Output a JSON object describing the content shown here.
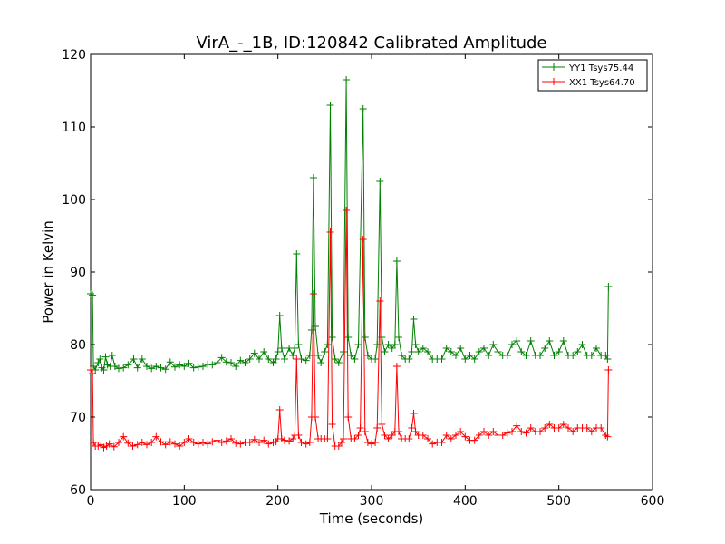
{
  "chart_data": {
    "type": "line",
    "title": "VirA_-_1B, ID:120842 Calibrated Amplitude",
    "xlabel": "Time (seconds)",
    "ylabel": "Power in Kelvin",
    "xlim": [
      0,
      600
    ],
    "ylim": [
      60,
      120
    ],
    "xticks": [
      0,
      100,
      200,
      300,
      400,
      500,
      600
    ],
    "yticks": [
      60,
      70,
      80,
      90,
      100,
      110,
      120
    ],
    "xtick_labels": [
      "0",
      "100",
      "200",
      "300",
      "400",
      "500",
      "600"
    ],
    "ytick_labels": [
      "60",
      "70",
      "80",
      "90",
      "100",
      "110",
      "120"
    ],
    "grid": false,
    "legend_position": "top-right",
    "series": [
      {
        "name": "YY1 Tsys75.44",
        "color": "#008000",
        "marker": "+",
        "points": [
          [
            0,
            87.0
          ],
          [
            2,
            86.8
          ],
          [
            3,
            77.0
          ],
          [
            5,
            76.5
          ],
          [
            8,
            77.5
          ],
          [
            10,
            78.0
          ],
          [
            12,
            76.8
          ],
          [
            14,
            76.5
          ],
          [
            16,
            78.3
          ],
          [
            18,
            77.2
          ],
          [
            21,
            77.0
          ],
          [
            23,
            78.5
          ],
          [
            26,
            77.0
          ],
          [
            30,
            76.7
          ],
          [
            35,
            76.8
          ],
          [
            40,
            77.2
          ],
          [
            46,
            78.0
          ],
          [
            50,
            76.8
          ],
          [
            55,
            78.0
          ],
          [
            60,
            77.0
          ],
          [
            65,
            76.7
          ],
          [
            70,
            77.0
          ],
          [
            75,
            76.8
          ],
          [
            80,
            76.6
          ],
          [
            85,
            77.6
          ],
          [
            90,
            76.9
          ],
          [
            95,
            77.2
          ],
          [
            100,
            77.0
          ],
          [
            105,
            77.4
          ],
          [
            110,
            76.8
          ],
          [
            115,
            76.9
          ],
          [
            120,
            77.0
          ],
          [
            125,
            77.3
          ],
          [
            130,
            77.2
          ],
          [
            135,
            77.5
          ],
          [
            140,
            78.2
          ],
          [
            145,
            77.6
          ],
          [
            150,
            77.5
          ],
          [
            155,
            77.0
          ],
          [
            160,
            77.8
          ],
          [
            165,
            77.5
          ],
          [
            170,
            78.0
          ],
          [
            175,
            78.8
          ],
          [
            180,
            78.0
          ],
          [
            185,
            79.0
          ],
          [
            190,
            78.0
          ],
          [
            195,
            77.5
          ],
          [
            198,
            78.0
          ],
          [
            200,
            79.0
          ],
          [
            202,
            84.0
          ],
          [
            204,
            79.5
          ],
          [
            207,
            78.0
          ],
          [
            212,
            79.5
          ],
          [
            216,
            78.5
          ],
          [
            218,
            79.5
          ],
          [
            220,
            92.5
          ],
          [
            222,
            80.0
          ],
          [
            225,
            78.0
          ],
          [
            230,
            77.8
          ],
          [
            234,
            78.5
          ],
          [
            236,
            82.0
          ],
          [
            238,
            103.0
          ],
          [
            240,
            82.5
          ],
          [
            243,
            78.5
          ],
          [
            246,
            77.5
          ],
          [
            250,
            79.0
          ],
          [
            253,
            80.0
          ],
          [
            256,
            113.0
          ],
          [
            258,
            81.0
          ],
          [
            261,
            78.0
          ],
          [
            265,
            77.5
          ],
          [
            270,
            79.0
          ],
          [
            273,
            116.5
          ],
          [
            275,
            81.0
          ],
          [
            278,
            78.5
          ],
          [
            282,
            78.0
          ],
          [
            286,
            80.0
          ],
          [
            291,
            112.5
          ],
          [
            293,
            81.0
          ],
          [
            296,
            78.5
          ],
          [
            300,
            78.0
          ],
          [
            304,
            78.0
          ],
          [
            306,
            80.0
          ],
          [
            309,
            102.5
          ],
          [
            311,
            81.0
          ],
          [
            314,
            79.0
          ],
          [
            318,
            80.0
          ],
          [
            322,
            79.5
          ],
          [
            325,
            80.0
          ],
          [
            327,
            91.5
          ],
          [
            329,
            81.0
          ],
          [
            332,
            78.5
          ],
          [
            336,
            78.0
          ],
          [
            340,
            78.0
          ],
          [
            343,
            79.0
          ],
          [
            345,
            83.5
          ],
          [
            347,
            80.0
          ],
          [
            350,
            79.0
          ],
          [
            355,
            79.5
          ],
          [
            360,
            79.0
          ],
          [
            365,
            78.0
          ],
          [
            370,
            78.0
          ],
          [
            375,
            78.0
          ],
          [
            380,
            79.5
          ],
          [
            385,
            79.0
          ],
          [
            390,
            78.5
          ],
          [
            395,
            79.5
          ],
          [
            400,
            78.0
          ],
          [
            405,
            78.5
          ],
          [
            410,
            78.0
          ],
          [
            415,
            79.0
          ],
          [
            420,
            79.5
          ],
          [
            425,
            78.5
          ],
          [
            430,
            80.0
          ],
          [
            435,
            79.0
          ],
          [
            440,
            78.5
          ],
          [
            445,
            78.5
          ],
          [
            450,
            80.0
          ],
          [
            455,
            80.5
          ],
          [
            460,
            79.0
          ],
          [
            465,
            78.5
          ],
          [
            470,
            80.5
          ],
          [
            475,
            78.5
          ],
          [
            480,
            78.5
          ],
          [
            485,
            79.5
          ],
          [
            490,
            80.5
          ],
          [
            495,
            78.5
          ],
          [
            500,
            79.0
          ],
          [
            505,
            80.5
          ],
          [
            510,
            78.5
          ],
          [
            515,
            78.5
          ],
          [
            520,
            79.0
          ],
          [
            525,
            80.0
          ],
          [
            530,
            78.5
          ],
          [
            535,
            78.5
          ],
          [
            540,
            79.5
          ],
          [
            545,
            78.5
          ],
          [
            550,
            78.5
          ],
          [
            552,
            78.0
          ],
          [
            553,
            88.0
          ]
        ]
      },
      {
        "name": "XX1 Tsys64.70",
        "color": "#ff0000",
        "marker": "+",
        "points": [
          [
            0,
            76.5
          ],
          [
            2,
            76.0
          ],
          [
            3,
            66.5
          ],
          [
            5,
            66.0
          ],
          [
            8,
            66.0
          ],
          [
            11,
            66.2
          ],
          [
            14,
            65.8
          ],
          [
            17,
            66.0
          ],
          [
            20,
            66.3
          ],
          [
            25,
            65.9
          ],
          [
            30,
            66.5
          ],
          [
            35,
            67.3
          ],
          [
            40,
            66.4
          ],
          [
            45,
            66.0
          ],
          [
            50,
            66.2
          ],
          [
            55,
            66.5
          ],
          [
            60,
            66.2
          ],
          [
            65,
            66.5
          ],
          [
            70,
            67.3
          ],
          [
            75,
            66.6
          ],
          [
            80,
            66.2
          ],
          [
            85,
            66.6
          ],
          [
            90,
            66.3
          ],
          [
            95,
            66.0
          ],
          [
            100,
            66.5
          ],
          [
            105,
            67.0
          ],
          [
            110,
            66.5
          ],
          [
            115,
            66.3
          ],
          [
            120,
            66.5
          ],
          [
            125,
            66.3
          ],
          [
            130,
            66.6
          ],
          [
            135,
            66.8
          ],
          [
            140,
            66.5
          ],
          [
            145,
            66.7
          ],
          [
            150,
            67.0
          ],
          [
            155,
            66.4
          ],
          [
            160,
            66.3
          ],
          [
            165,
            66.5
          ],
          [
            170,
            66.5
          ],
          [
            175,
            66.9
          ],
          [
            180,
            66.5
          ],
          [
            185,
            66.8
          ],
          [
            190,
            66.3
          ],
          [
            195,
            66.5
          ],
          [
            198,
            66.6
          ],
          [
            200,
            67.0
          ],
          [
            202,
            71.0
          ],
          [
            204,
            67.0
          ],
          [
            207,
            66.8
          ],
          [
            212,
            66.7
          ],
          [
            216,
            67.0
          ],
          [
            218,
            67.5
          ],
          [
            220,
            78.0
          ],
          [
            222,
            67.5
          ],
          [
            225,
            66.5
          ],
          [
            230,
            66.3
          ],
          [
            234,
            66.5
          ],
          [
            236,
            70.0
          ],
          [
            238,
            87.0
          ],
          [
            240,
            70.0
          ],
          [
            243,
            67.0
          ],
          [
            246,
            67.0
          ],
          [
            250,
            67.0
          ],
          [
            253,
            67.0
          ],
          [
            256,
            95.5
          ],
          [
            258,
            69.0
          ],
          [
            261,
            66.0
          ],
          [
            265,
            66.0
          ],
          [
            268,
            66.5
          ],
          [
            270,
            67.0
          ],
          [
            273,
            98.5
          ],
          [
            275,
            70.0
          ],
          [
            278,
            67.0
          ],
          [
            282,
            67.0
          ],
          [
            286,
            67.5
          ],
          [
            288,
            68.5
          ],
          [
            291,
            94.5
          ],
          [
            293,
            68.0
          ],
          [
            296,
            66.5
          ],
          [
            300,
            66.3
          ],
          [
            304,
            66.5
          ],
          [
            306,
            68.5
          ],
          [
            309,
            86.0
          ],
          [
            311,
            69.0
          ],
          [
            314,
            67.5
          ],
          [
            318,
            67.0
          ],
          [
            322,
            67.5
          ],
          [
            325,
            68.0
          ],
          [
            327,
            77.0
          ],
          [
            329,
            68.0
          ],
          [
            332,
            67.0
          ],
          [
            336,
            67.0
          ],
          [
            340,
            67.0
          ],
          [
            343,
            68.5
          ],
          [
            345,
            70.5
          ],
          [
            347,
            68.0
          ],
          [
            350,
            67.5
          ],
          [
            355,
            67.5
          ],
          [
            360,
            67.0
          ],
          [
            365,
            66.3
          ],
          [
            370,
            66.5
          ],
          [
            375,
            66.5
          ],
          [
            380,
            67.5
          ],
          [
            385,
            67.0
          ],
          [
            390,
            67.5
          ],
          [
            395,
            68.0
          ],
          [
            400,
            67.3
          ],
          [
            405,
            66.8
          ],
          [
            410,
            66.8
          ],
          [
            415,
            67.5
          ],
          [
            420,
            68.0
          ],
          [
            425,
            67.5
          ],
          [
            430,
            68.0
          ],
          [
            435,
            67.5
          ],
          [
            440,
            67.5
          ],
          [
            445,
            67.8
          ],
          [
            450,
            68.0
          ],
          [
            455,
            68.8
          ],
          [
            460,
            68.0
          ],
          [
            465,
            67.8
          ],
          [
            470,
            68.5
          ],
          [
            475,
            68.0
          ],
          [
            480,
            68.0
          ],
          [
            485,
            68.5
          ],
          [
            490,
            69.0
          ],
          [
            495,
            68.5
          ],
          [
            500,
            68.5
          ],
          [
            505,
            69.0
          ],
          [
            510,
            68.5
          ],
          [
            515,
            68.0
          ],
          [
            520,
            68.5
          ],
          [
            525,
            68.5
          ],
          [
            530,
            68.5
          ],
          [
            535,
            68.0
          ],
          [
            540,
            68.5
          ],
          [
            545,
            68.5
          ],
          [
            550,
            67.5
          ],
          [
            552,
            67.3
          ],
          [
            553,
            76.5
          ]
        ]
      }
    ]
  }
}
